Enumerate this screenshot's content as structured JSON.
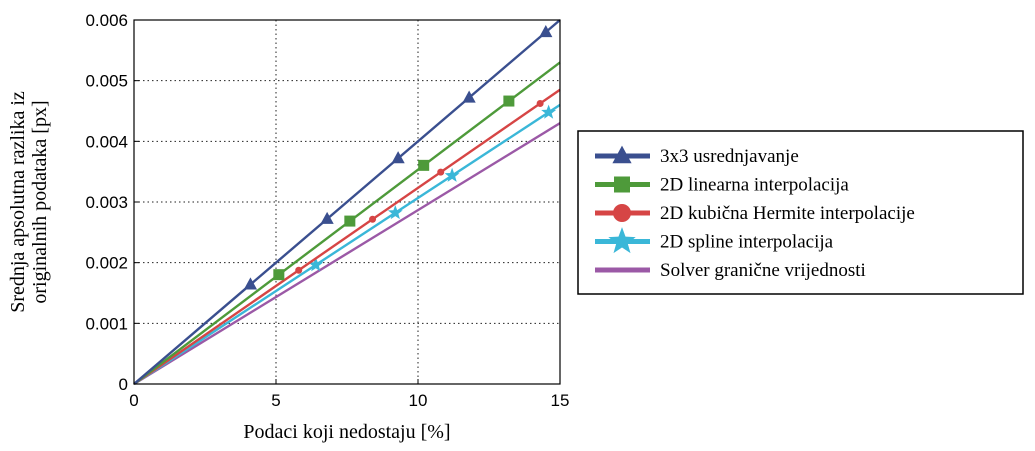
{
  "chart_data": {
    "type": "line",
    "title": "",
    "xlabel": "Podaci koji nedostaju [%]",
    "ylabel_lines": [
      "Srednja apsolutna razlika iz",
      "originalnih podataka [px]"
    ],
    "xlim": [
      0,
      15
    ],
    "ylim": [
      0,
      0.006
    ],
    "x_ticks": [
      0,
      5,
      10,
      15
    ],
    "x_tick_labels": [
      "0",
      "5",
      "10",
      "15"
    ],
    "y_ticks": [
      0,
      0.001,
      0.002,
      0.003,
      0.004,
      0.005,
      0.006
    ],
    "y_tick_labels": [
      "0",
      "0.001",
      "0.002",
      "0.003",
      "0.004",
      "0.005",
      "0.006"
    ],
    "grid": true,
    "legend_position": "right-outside",
    "series": [
      {
        "name": "3x3 usrednjavanje",
        "color": "#3a4f8f",
        "marker": "triangle",
        "x": [
          0,
          15
        ],
        "y": [
          0,
          0.006
        ],
        "marker_x": [
          4.1,
          6.8,
          9.3,
          11.8,
          14.5
        ]
      },
      {
        "name": "2D linearna interpolacija",
        "color": "#4e9a3a",
        "marker": "square",
        "x": [
          0,
          15
        ],
        "y": [
          0,
          0.0053
        ],
        "marker_x": [
          5.1,
          7.6,
          10.2,
          13.2
        ]
      },
      {
        "name": "2D kubična Hermite interpolacije",
        "color": "#d64545",
        "marker": "circle",
        "x": [
          0,
          15
        ],
        "y": [
          0,
          0.00485
        ],
        "marker_x": [
          5.8,
          8.4,
          10.8,
          14.3
        ]
      },
      {
        "name": "2D spline interpolacija",
        "color": "#3ab7d8",
        "marker": "star",
        "x": [
          0,
          15
        ],
        "y": [
          0,
          0.0046
        ],
        "marker_x": [
          6.4,
          9.2,
          11.2,
          14.6
        ]
      },
      {
        "name": "Solver granične vrijednosti",
        "color": "#9b59a6",
        "marker": "none",
        "x": [
          0,
          15
        ],
        "y": [
          0,
          0.0043
        ],
        "marker_x": []
      }
    ]
  }
}
